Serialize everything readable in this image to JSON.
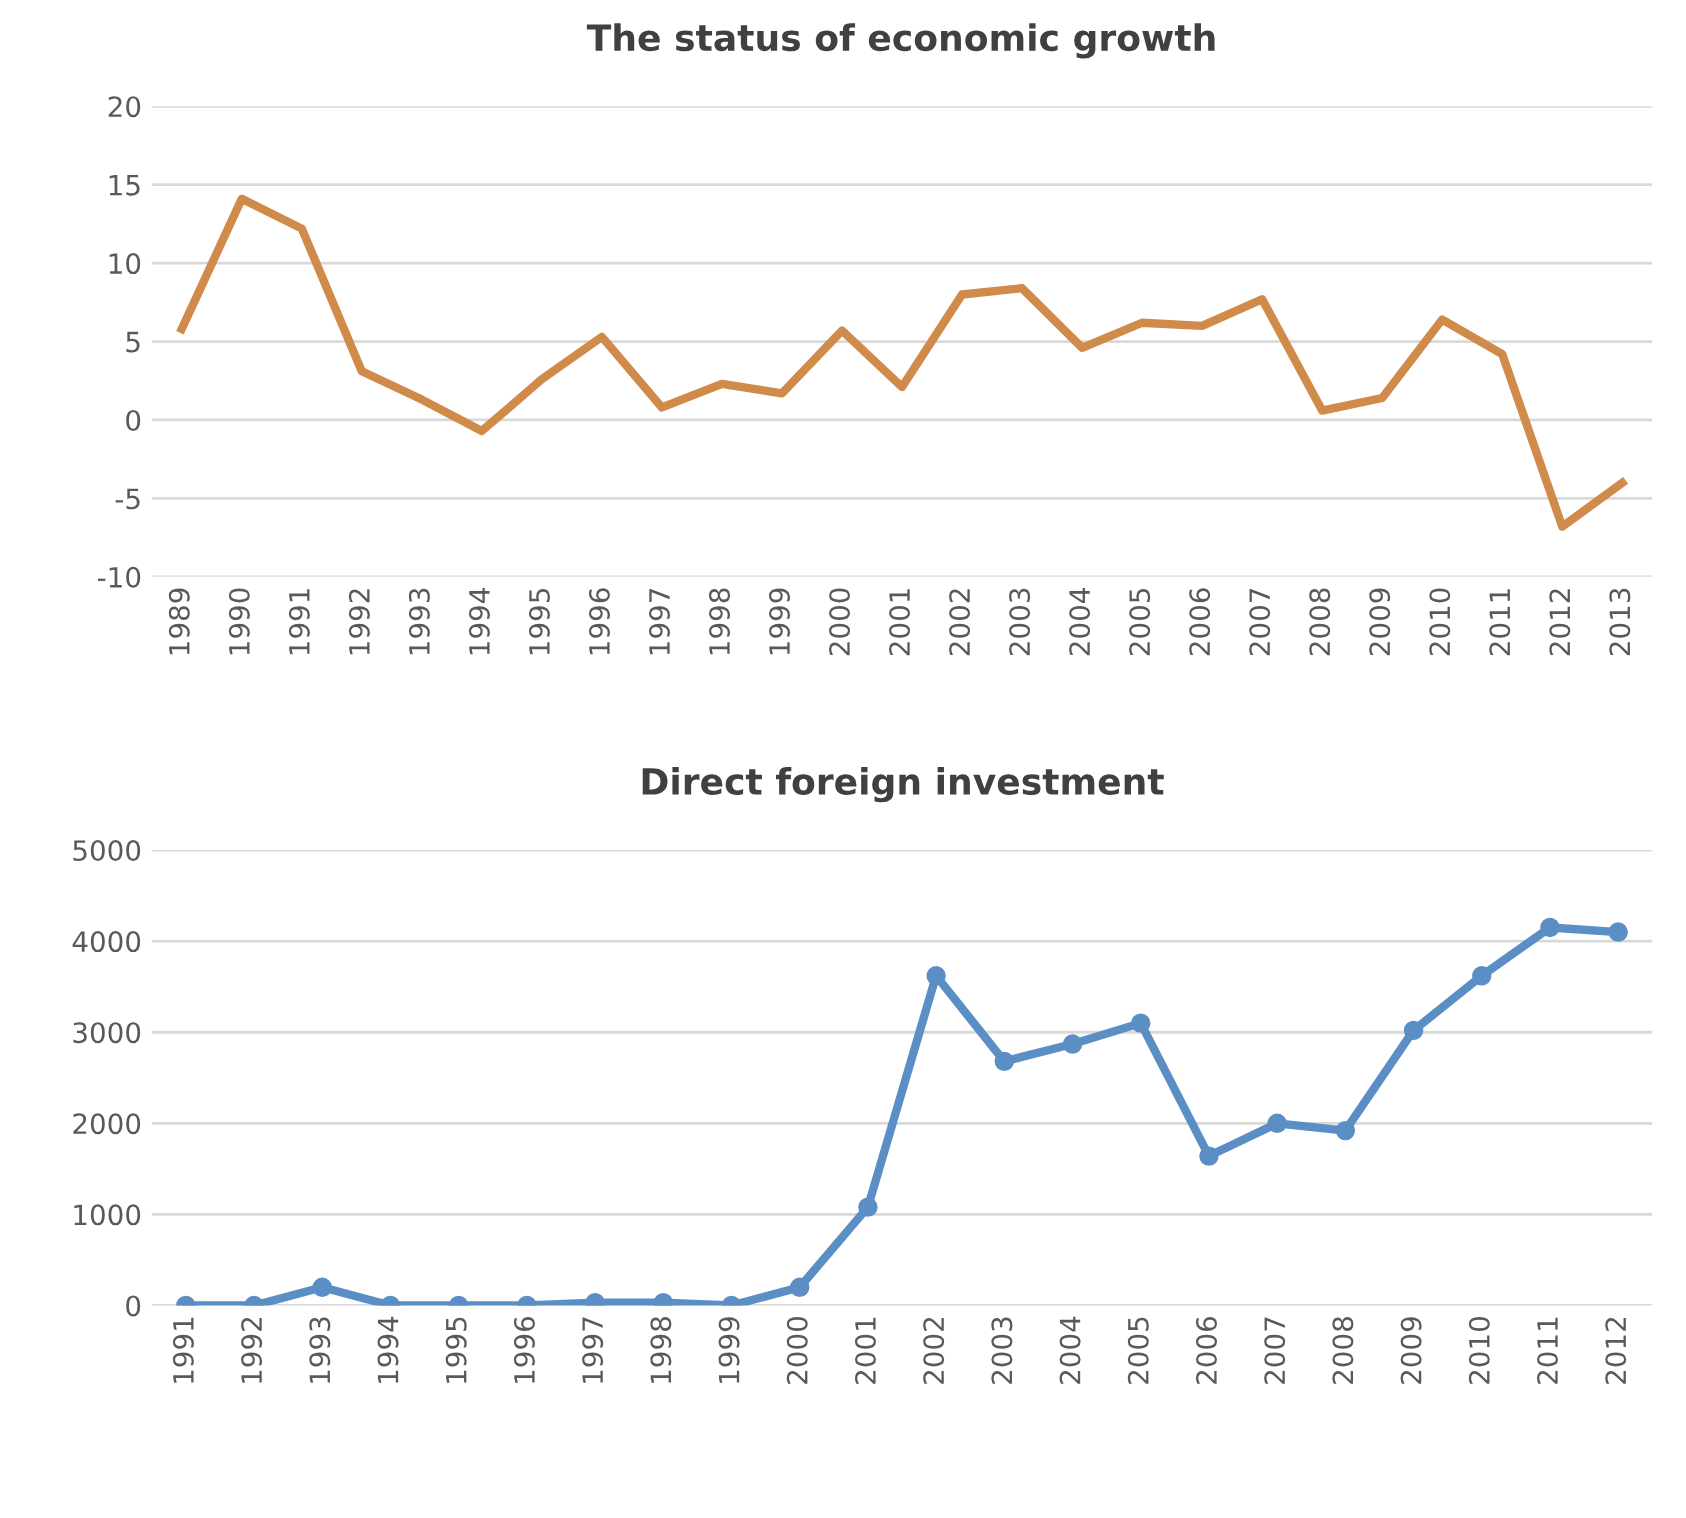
{
  "chart_data": [
    {
      "type": "line",
      "title": "The status of economic growth",
      "categories": [
        "1989",
        "1990",
        "1991",
        "1992",
        "1993",
        "1994",
        "1995",
        "1996",
        "1997",
        "1998",
        "1999",
        "2000",
        "2001",
        "2002",
        "2003",
        "2004",
        "2005",
        "2006",
        "2007",
        "2008",
        "2009",
        "2010",
        "2011",
        "2012",
        "2013"
      ],
      "series": [
        {
          "color": "#d08a4a",
          "values": [
            5.8,
            14.1,
            12.2,
            3.1,
            1.3,
            -0.7,
            2.6,
            5.3,
            0.8,
            2.3,
            1.7,
            5.7,
            2.1,
            8.0,
            8.4,
            4.6,
            6.2,
            6.0,
            7.7,
            0.6,
            1.4,
            6.4,
            4.2,
            -6.8,
            -4.0
          ]
        }
      ],
      "ylim": [
        -10,
        20
      ],
      "yticks": [
        -10,
        -5,
        0,
        5,
        10,
        15,
        20
      ],
      "grid": "y",
      "marker": "none"
    },
    {
      "type": "line",
      "title": "Direct foreign investment",
      "categories": [
        "1991",
        "1992",
        "1993",
        "1994",
        "1995",
        "1996",
        "1997",
        "1998",
        "1999",
        "2000",
        "2001",
        "2002",
        "2003",
        "2004",
        "2005",
        "2006",
        "2007",
        "2008",
        "2009",
        "2010",
        "2011",
        "2012"
      ],
      "series": [
        {
          "color": "#5b8ec4",
          "values": [
            0,
            0,
            200,
            0,
            0,
            0,
            30,
            30,
            0,
            200,
            1080,
            3620,
            2680,
            2870,
            3100,
            1640,
            2000,
            1920,
            3020,
            3620,
            4150,
            4100
          ]
        }
      ],
      "ylim": [
        0,
        5000
      ],
      "yticks": [
        0,
        1000,
        2000,
        3000,
        4000,
        5000
      ],
      "grid": "y",
      "marker": "circle"
    }
  ]
}
